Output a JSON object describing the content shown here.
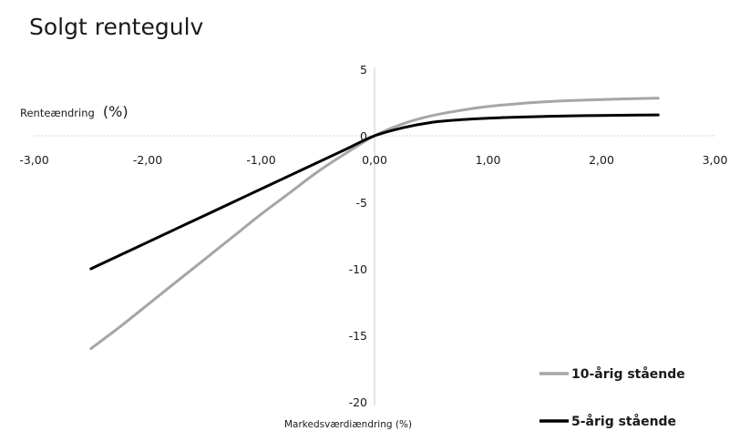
{
  "chart_data": {
    "type": "line",
    "title": "Solgt rentegulv",
    "xlabel": "Markedsværdiændring (%)",
    "ylabel_prefix": "Renteændring",
    "ylabel_unit": "(%)",
    "xlim": [
      -3,
      3
    ],
    "ylim": [
      -20,
      5
    ],
    "x_ticks": [
      -3,
      -2,
      -1,
      0,
      1,
      2,
      3
    ],
    "x_tick_labels": [
      "-3,00",
      "-2,00",
      "-1,00",
      "0,00",
      "1,00",
      "2,00",
      "3,00"
    ],
    "y_ticks": [
      5,
      0,
      -5,
      -10,
      -15,
      -20
    ],
    "y_tick_labels": [
      "5",
      "0",
      "-5",
      "-10",
      "-15",
      "-20"
    ],
    "grid": false,
    "legend_position": "bottom-right",
    "series": [
      {
        "name": "10-årig stående",
        "color": "#a6a6a6",
        "x": [
          -2.5,
          -2.25,
          -2.0,
          -1.75,
          -1.5,
          -1.25,
          -1.0,
          -0.75,
          -0.5,
          -0.25,
          0.0,
          0.25,
          0.5,
          0.75,
          1.0,
          1.25,
          1.5,
          1.75,
          2.0,
          2.25,
          2.5
        ],
        "y": [
          -16.0,
          -14.4,
          -12.7,
          -11.0,
          -9.3,
          -7.6,
          -5.9,
          -4.3,
          -2.7,
          -1.3,
          0.0,
          0.9,
          1.5,
          1.9,
          2.2,
          2.4,
          2.55,
          2.65,
          2.72,
          2.78,
          2.82
        ]
      },
      {
        "name": "5-årig stående",
        "color": "#000000",
        "x": [
          -2.5,
          -2.25,
          -2.0,
          -1.75,
          -1.5,
          -1.25,
          -1.0,
          -0.75,
          -0.5,
          -0.25,
          0.0,
          0.25,
          0.5,
          0.75,
          1.0,
          1.25,
          1.5,
          1.75,
          2.0,
          2.25,
          2.5
        ],
        "y": [
          -10.0,
          -9.0,
          -8.0,
          -7.0,
          -6.0,
          -5.0,
          -4.0,
          -3.0,
          -2.0,
          -1.0,
          0.0,
          0.6,
          1.0,
          1.2,
          1.32,
          1.4,
          1.45,
          1.5,
          1.53,
          1.55,
          1.57
        ]
      }
    ]
  }
}
